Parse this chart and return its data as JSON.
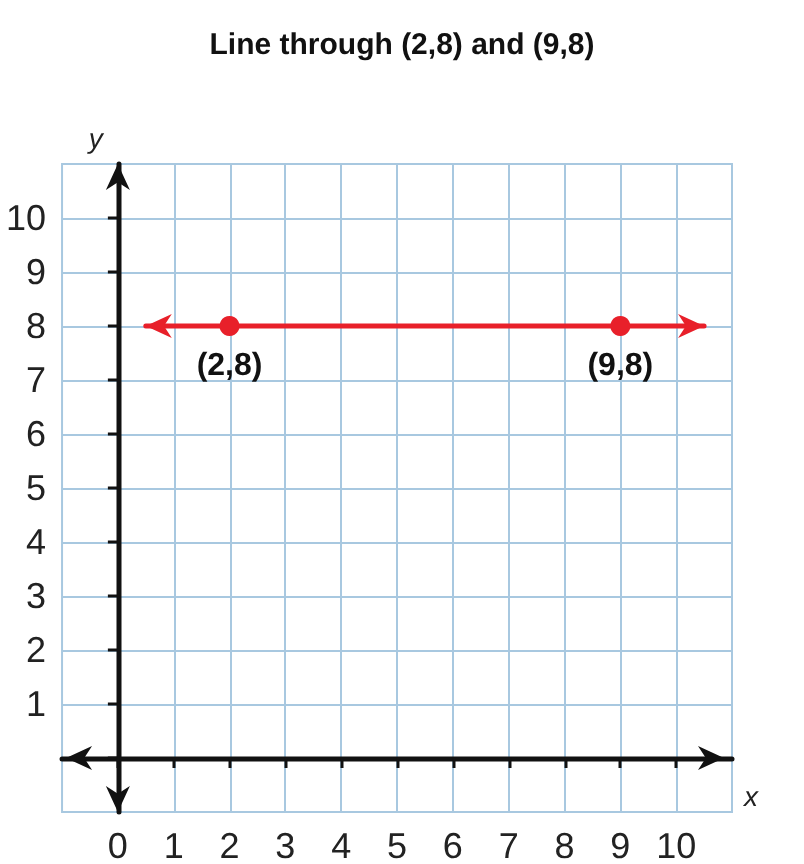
{
  "chart_data": {
    "type": "line",
    "title": "Line through (2,8) and (9,8)",
    "xlabel": "x",
    "ylabel": "y",
    "xlim": [
      -1,
      11
    ],
    "ylim": [
      -1,
      11
    ],
    "xticks": [
      0,
      1,
      2,
      3,
      4,
      5,
      6,
      7,
      8,
      9,
      10
    ],
    "yticks": [
      {
        "value": 0,
        "label": null
      },
      1,
      2,
      3,
      4,
      5,
      6,
      7,
      8,
      9,
      10
    ],
    "grid": true,
    "marker": "circle",
    "line_style": "solid",
    "series": [
      {
        "x": [
          0.5,
          2,
          9,
          10.5
        ],
        "values": [
          8,
          8,
          8,
          8
        ],
        "color": "#e8202a"
      }
    ],
    "annotations": [
      {
        "text": "(2,8)",
        "x": 2,
        "y": 8
      },
      {
        "text": "(9,8)",
        "x": 9,
        "y": 8
      }
    ]
  }
}
